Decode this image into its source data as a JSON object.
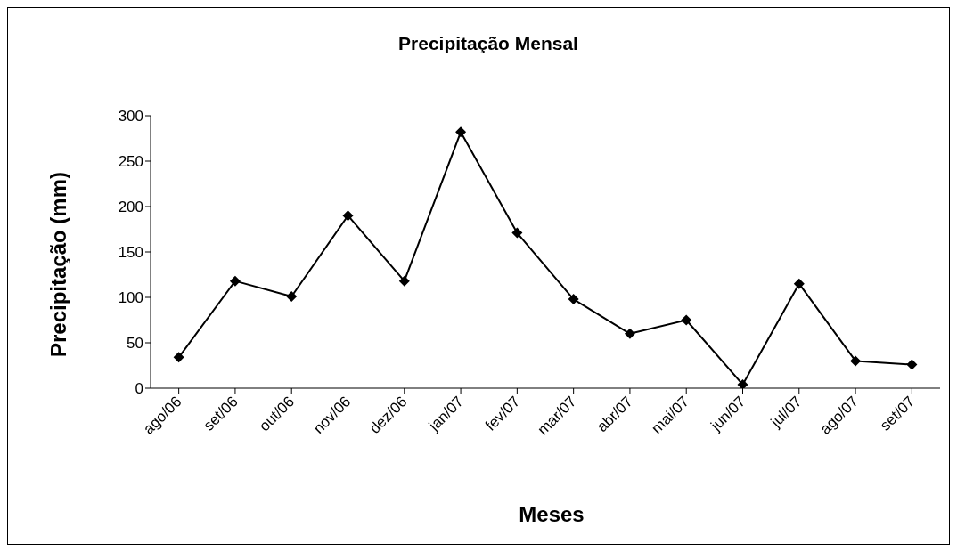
{
  "chart_data": {
    "type": "line",
    "title": "Precipitação Mensal",
    "xlabel": "Meses",
    "ylabel": "Precipitação (mm)",
    "categories": [
      "ago/06",
      "set/06",
      "out/06",
      "nov/06",
      "dez/06",
      "jan/07",
      "fev/07",
      "mar/07",
      "abr/07",
      "mai/07",
      "jun/07",
      "jul/07",
      "ago/07",
      "set/07"
    ],
    "series": [
      {
        "color": "#000000",
        "values": [
          34,
          118,
          101,
          190,
          118,
          282,
          171,
          98,
          60,
          75,
          4,
          115,
          30,
          26
        ]
      }
    ],
    "ylim": [
      0,
      300
    ],
    "yticks": [
      0,
      50,
      100,
      150,
      200,
      250,
      300
    ],
    "grid": false,
    "legend": false,
    "marker": "diamond",
    "line_style": "solid"
  }
}
